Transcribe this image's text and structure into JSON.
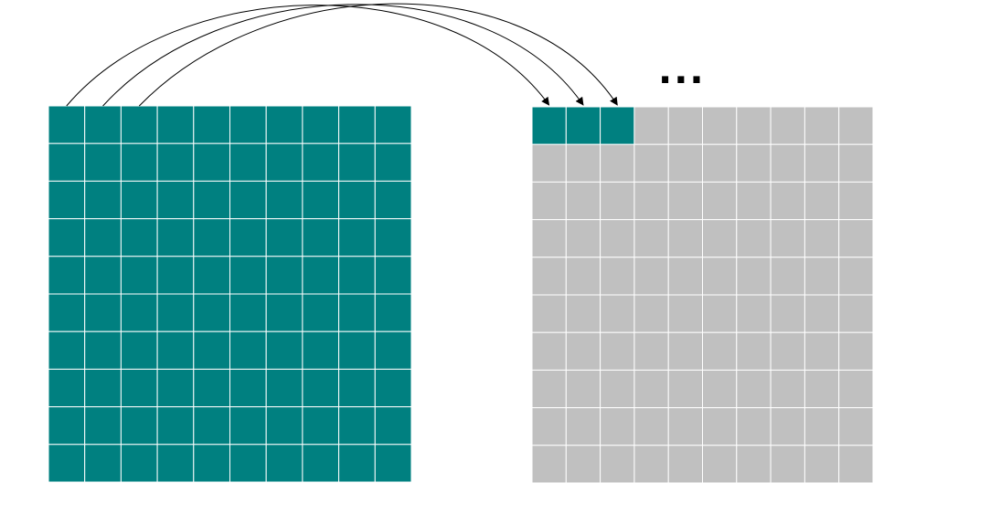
{
  "diagram": {
    "ellipsis": "...",
    "source_grid": {
      "rows": 10,
      "cols": 10,
      "fill_color": "#008080",
      "line_color": "#ffffff"
    },
    "target_grid": {
      "rows": 10,
      "cols": 10,
      "empty_color": "#c0c0c0",
      "filled_color": "#008080",
      "line_color": "#ffffff",
      "filled_cells": 3
    },
    "arrows": {
      "count": 3,
      "color": "#000000"
    }
  }
}
